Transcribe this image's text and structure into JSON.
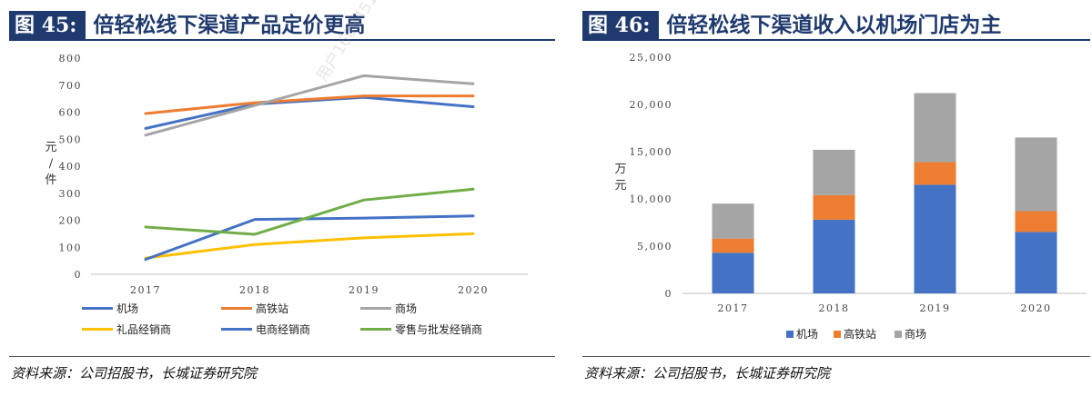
{
  "left": {
    "fig_no": "图 45:",
    "title": "倍轻松线下渠道产品定价更高",
    "source": "资料来源：公司招股书，长城证券研究院",
    "watermark": "用户1608451671-2022"
  },
  "right": {
    "fig_no": "图 46:",
    "title": "倍轻松线下渠道收入以机场门店为主",
    "source": "资料来源：公司招股书，长城证券研究院"
  },
  "chart_data": [
    {
      "type": "line",
      "ylabel": "元/件",
      "ylim": [
        0,
        800
      ],
      "yticks": [
        "0",
        "100",
        "200",
        "300",
        "400",
        "500",
        "600",
        "700",
        "800"
      ],
      "x": [
        "2017",
        "2018",
        "2019",
        "2020"
      ],
      "grid": false,
      "legend_position": "bottom",
      "series": [
        {
          "name": "机场",
          "color": "#4472c4",
          "values": [
            540,
            630,
            655,
            620
          ]
        },
        {
          "name": "高铁站",
          "color": "#ed7d31",
          "values": [
            595,
            635,
            660,
            660
          ]
        },
        {
          "name": "商场",
          "color": "#a5a5a5",
          "values": [
            515,
            625,
            735,
            705
          ]
        },
        {
          "name": "礼品经销商",
          "color": "#ffc000",
          "values": [
            60,
            110,
            135,
            150
          ]
        },
        {
          "name": "电商经销商",
          "color": "#4472c4",
          "values": [
            55,
            203,
            208,
            216
          ]
        },
        {
          "name": "零售与批发经销商",
          "color": "#70ad47",
          "values": [
            175,
            148,
            275,
            315
          ]
        }
      ]
    },
    {
      "type": "bar",
      "stacked": true,
      "ylabel": "万元",
      "ylim": [
        0,
        25000
      ],
      "yticks": [
        "0",
        "5,000",
        "10,000",
        "15,000",
        "20,000",
        "25,000"
      ],
      "categories": [
        "2017",
        "2018",
        "2019",
        "2020"
      ],
      "grid": false,
      "legend_position": "bottom",
      "series": [
        {
          "name": "机场",
          "color": "#4472c4",
          "values": [
            4300,
            7800,
            11500,
            6500
          ]
        },
        {
          "name": "高铁站",
          "color": "#ed7d31",
          "values": [
            1500,
            2600,
            2400,
            2200
          ]
        },
        {
          "name": "商场",
          "color": "#a5a5a5",
          "values": [
            3700,
            4800,
            7300,
            7800
          ]
        }
      ]
    }
  ]
}
